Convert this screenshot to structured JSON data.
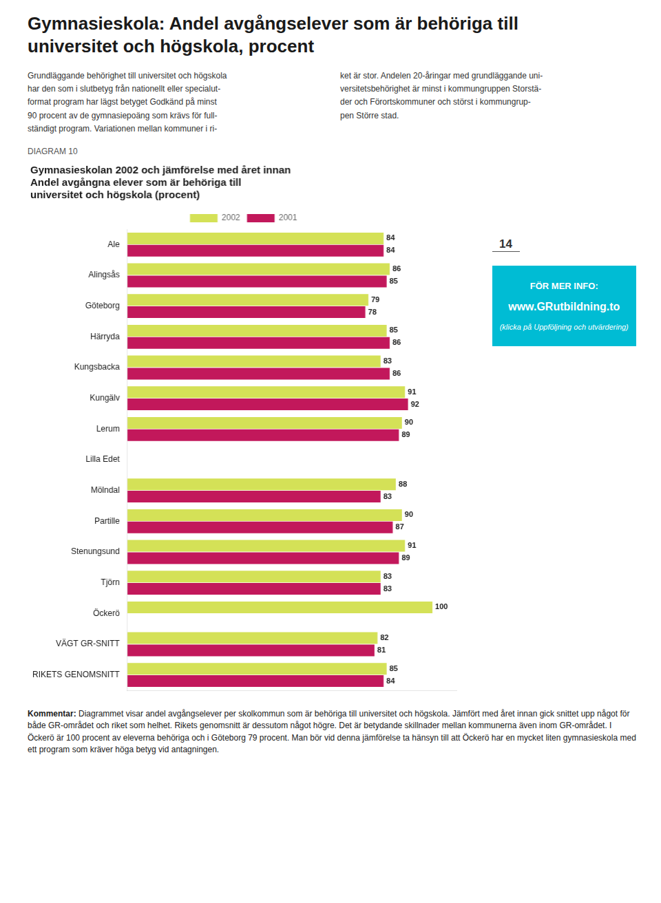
{
  "chart_data": {
    "type": "bar",
    "orientation": "horizontal",
    "title": [
      "Gymnasieskolan 2002 och jämförelse med året innan",
      "Andel avgångna elever som är behöriga till",
      "universitet och högskola (procent)"
    ],
    "annotations": [
      "Gymnasieskola: Andel avgångselever som är behöriga till",
      "universitet och högskola, procent",
      "Grundläggande behörighet till universitet och högskola\nhar den som i slutbetyg från nationellt eller specialut-\nformat program har lägst betyget Godkänd på minst\n90 procent av de gymnasiepoäng som krävs för full-\nständigt program. Variationen mellan kommuner i ri-",
      "ket är stor. Andelen 20-åringar med grundläggande uni-\nversitetsbehörighet är minst i kommungruppen Storstä-\nder och Förortskommuner och störst i kommungrup-\npen Större stad.",
      "DIAGRAM 10",
      "14",
      "FÖR MER INFO:",
      "www.GRutbildning.to",
      "(klicka på Uppföljning och utvärdering)",
      "Kommentar:",
      " Diagrammet visar andel avgångselever per skolkommun som är behöriga till universitet och högskola. Jämfört med året innan gick snittet upp något för både GR-området och riket som helhet. Rikets genomsnitt är dessutom något högre. Det är betydande skillnader mellan kommunerna även inom GR-området. I Öckerö är 100 procent av eleverna behöriga och i Göteborg 79 procent. Man bör vid denna jämförelse ta hänsyn till att Öckerö har en mycket liten gymnasieskola med ett program som kräver höga betyg vid antagningen."
    ],
    "categories": [
      "Ale",
      "Alingsås",
      "Göteborg",
      "Härryda",
      "Kungsbacka",
      "Kungälv",
      "Lerum",
      "Lilla Edet",
      "Mölndal",
      "Partille",
      "Stenungsund",
      "Tjörn",
      "Öckerö",
      "VÄGT GR-SNITT",
      "RIKETS GENOMSNITT"
    ],
    "series": [
      {
        "name": "2002",
        "color": "#d4e157",
        "values": [
          84,
          86,
          79,
          85,
          83,
          91,
          90,
          null,
          88,
          90,
          91,
          83,
          100,
          82,
          85
        ]
      },
      {
        "name": "2001",
        "color": "#c2185b",
        "values": [
          84,
          85,
          78,
          86,
          86,
          92,
          89,
          null,
          83,
          87,
          89,
          83,
          null,
          81,
          84
        ]
      }
    ],
    "xlim": [
      0,
      108
    ],
    "xticks": [],
    "tick_labels": "y",
    "grid": false,
    "legend": "top",
    "data_labels": true
  }
}
